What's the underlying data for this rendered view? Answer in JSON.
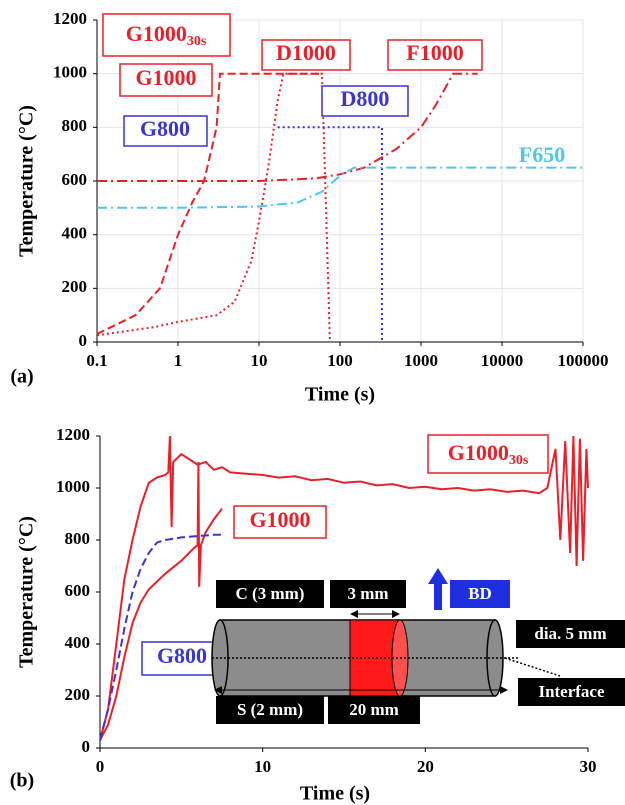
{
  "chart_data": [
    {
      "type": "line",
      "panel_label": "(a)",
      "x_label": "Time (s)",
      "y_label": "Temperature (°C)",
      "xscale": "log",
      "xlim": [
        0.1,
        100000
      ],
      "xticks": [
        0.1,
        1,
        10,
        100,
        1000,
        10000,
        100000
      ],
      "ylim": [
        0,
        1200
      ],
      "yticks": [
        0,
        200,
        400,
        600,
        800,
        1000,
        1200
      ],
      "grid": true,
      "series": [
        {
          "color": "#e8202a",
          "dash": "dashed",
          "x": [
            0.1,
            0.3,
            0.6,
            1,
            1.5,
            2.1,
            2.6,
            3,
            3.3,
            10,
            30,
            55
          ],
          "values": [
            30,
            100,
            200,
            400,
            520,
            600,
            720,
            800,
            1000,
            1000,
            1000,
            1000
          ]
        },
        {
          "color": "#e8202a",
          "dash": "dotted",
          "x": [
            0.1,
            0.5,
            1,
            3,
            5,
            8,
            10,
            13,
            17,
            20,
            40,
            60,
            75
          ],
          "values": [
            25,
            55,
            75,
            100,
            150,
            300,
            450,
            650,
            900,
            1000,
            1000,
            1000,
            0
          ]
        },
        {
          "color": "#3a33d6",
          "dash": "dotted",
          "x": [
            17,
            50,
            100,
            330,
            330
          ],
          "values": [
            800,
            800,
            800,
            800,
            0
          ]
        },
        {
          "color": "#e8202a",
          "dash": "dashdot",
          "x": [
            0.1,
            1,
            10,
            50,
            100,
            200,
            500,
            1000,
            1500,
            2500,
            5000
          ],
          "values": [
            600,
            600,
            600,
            610,
            625,
            650,
            720,
            800,
            880,
            1000,
            1000
          ]
        },
        {
          "color": "#4cc8ec",
          "dash": "dashdot",
          "x": [
            0.1,
            1,
            10,
            30,
            60,
            100,
            150,
            1000,
            10000,
            100000
          ],
          "values": [
            500,
            500,
            505,
            520,
            560,
            620,
            650,
            650,
            650,
            650
          ]
        }
      ],
      "annotations": [
        {
          "text": "G1000",
          "sub": "30s",
          "color": "#e8202a",
          "box": true
        },
        {
          "text": "G1000",
          "color": "#e8202a",
          "box": true
        },
        {
          "text": "D1000",
          "color": "#e8202a",
          "box": true
        },
        {
          "text": "F1000",
          "color": "#e8202a",
          "box": true
        },
        {
          "text": "D800",
          "color": "#3a33d6",
          "box": true
        },
        {
          "text": "G800",
          "color": "#3a33d6",
          "box": true
        },
        {
          "text": "F650",
          "color": "#4cc8ec",
          "box": false
        }
      ]
    },
    {
      "type": "line",
      "panel_label": "(b)",
      "x_label": "Time (s)",
      "y_label": "Temperature (°C)",
      "xscale": "linear",
      "xlim": [
        0,
        30
      ],
      "xticks": [
        0,
        10,
        20,
        30
      ],
      "ylim": [
        0,
        1200
      ],
      "yticks": [
        0,
        200,
        400,
        600,
        800,
        1000,
        1200
      ],
      "grid": false,
      "series": [
        {
          "color": "#e8202a",
          "dash": "solid",
          "x": [
            0,
            0.5,
            1,
            1.5,
            2,
            2.5,
            3,
            3.5,
            4,
            4.2,
            4.3,
            4.4,
            4.5,
            5,
            5.5,
            6,
            6.5,
            7,
            7.5,
            8,
            9,
            10,
            11,
            12,
            13,
            14,
            15,
            16,
            17,
            18,
            19,
            20,
            21,
            22,
            23,
            24,
            25,
            26,
            27,
            27.5,
            28,
            28.3,
            28.6,
            28.9,
            29.1,
            29.3,
            29.5,
            29.7,
            29.9,
            30
          ],
          "values": [
            30,
            150,
            400,
            650,
            800,
            930,
            1020,
            1040,
            1050,
            1060,
            1200,
            850,
            1100,
            1130,
            1110,
            1090,
            1100,
            1070,
            1080,
            1060,
            1055,
            1050,
            1040,
            1045,
            1030,
            1035,
            1020,
            1025,
            1010,
            1015,
            1000,
            1005,
            995,
            1000,
            990,
            995,
            985,
            990,
            980,
            1000,
            1150,
            800,
            1180,
            750,
            1200,
            700,
            1190,
            720,
            1150,
            1000
          ]
        },
        {
          "color": "#e8202a",
          "dash": "solid",
          "x": [
            0,
            0.5,
            1,
            1.5,
            2,
            2.5,
            3,
            4,
            5,
            5.8,
            6,
            6.05,
            6.1,
            6.2,
            6.5,
            7,
            7.5
          ],
          "values": [
            30,
            90,
            200,
            350,
            480,
            560,
            610,
            670,
            720,
            770,
            780,
            1100,
            620,
            780,
            830,
            880,
            920
          ]
        },
        {
          "color": "#3a33d6",
          "dash": "dashed",
          "x": [
            0,
            0.5,
            1,
            1.5,
            2,
            2.5,
            3,
            3.5,
            4,
            5,
            6,
            7,
            7.5
          ],
          "values": [
            30,
            150,
            300,
            460,
            600,
            690,
            750,
            790,
            800,
            810,
            815,
            820,
            820
          ]
        }
      ],
      "annotations": [
        {
          "text": "G1000",
          "sub": "30s",
          "color": "#e8202a",
          "box": true
        },
        {
          "text": "G1000",
          "color": "#e8202a",
          "box": true
        },
        {
          "text": "G800",
          "color": "#3a33d6",
          "box": true
        }
      ],
      "inset_labels": [
        "C (3 mm)",
        "3 mm",
        "BD",
        "dia. 5 mm",
        "Interface",
        "S (2 mm)",
        "20 mm"
      ]
    }
  ]
}
